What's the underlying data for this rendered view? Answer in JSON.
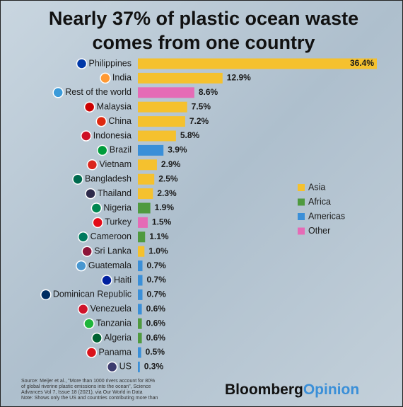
{
  "chart_data": {
    "type": "hbar",
    "title": [
      "Nearly 37% of plastic ocean waste",
      "comes from one country"
    ],
    "categories": [
      "Philippines",
      "India",
      "Rest of the world",
      "Malaysia",
      "China",
      "Indonesia",
      "Brazil",
      "Vietnam",
      "Bangladesh",
      "Thailand",
      "Nigeria",
      "Turkey",
      "Cameroon",
      "Sri Lanka",
      "Guatemala",
      "Haiti",
      "Dominican Republic",
      "Venezuela",
      "Tanzania",
      "Algeria",
      "Panama",
      "US"
    ],
    "values": [
      36.4,
      12.9,
      8.6,
      7.5,
      7.2,
      5.8,
      3.9,
      2.9,
      2.5,
      2.3,
      1.9,
      1.5,
      1.1,
      1.0,
      0.7,
      0.7,
      0.7,
      0.6,
      0.6,
      0.6,
      0.5,
      0.3
    ],
    "value_labels": [
      "36.4%",
      "12.9%",
      "8.6%",
      "7.5%",
      "7.2%",
      "5.8%",
      "3.9%",
      "2.9%",
      "2.5%",
      "2.3%",
      "1.9%",
      "1.5%",
      "1.1%",
      "1.0%",
      "0.7%",
      "0.7%",
      "0.7%",
      "0.6%",
      "0.6%",
      "0.6%",
      "0.5%",
      "0.3%"
    ],
    "colors": [
      "#f5c12e",
      "#f5c12e",
      "#e56bb6",
      "#f5c12e",
      "#f5c12e",
      "#f5c12e",
      "#3a8fd8",
      "#f5c12e",
      "#f5c12e",
      "#f5c12e",
      "#4f9a3f",
      "#e56bb6",
      "#4f9a3f",
      "#f5c12e",
      "#3a8fd8",
      "#3a8fd8",
      "#3a8fd8",
      "#3a8fd8",
      "#4f9a3f",
      "#4f9a3f",
      "#3a8fd8",
      "#3a8fd8"
    ],
    "legend": [
      {
        "name": "Asia",
        "color": "#f5c12e"
      },
      {
        "name": "Africa",
        "color": "#4f9a3f"
      },
      {
        "name": "Americas",
        "color": "#3a8fd8"
      },
      {
        "name": "Other",
        "color": "#e56bb6"
      }
    ],
    "source": [
      "Source: Meijer et al., \"More than 1000 rivers account for 80%",
      "of global riverine plastic emissions into the ocean\", Science",
      "Advances Vol 7, Issue 18 (2021), via Our World in Data",
      "Note: Shows only the US and countries contributing more than"
    ],
    "brand": [
      "Bloomberg",
      "Opinion"
    ]
  }
}
